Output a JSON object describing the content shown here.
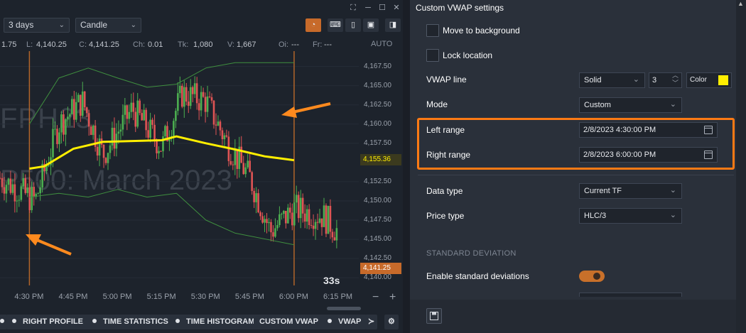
{
  "toolbar": {
    "period_label": "3 days",
    "chart_type_label": "Candle"
  },
  "ohlc": {
    "h_value": "1.75",
    "l_label": "L:",
    "l_value": "4,140.25",
    "c_label": "C:",
    "c_value": "4,141.25",
    "ch_label": "Ch:",
    "ch_value": "0.01",
    "tk_label": "Tk:",
    "tk_value": "1,080",
    "v_label": "V:",
    "v_value": "1,667",
    "oi_label": "Oi:",
    "oi_value": "---",
    "fr_label": "Fr:",
    "fr_value": "---"
  },
  "chart": {
    "auto_label": "AUTO",
    "watermark_symbol": "FPH23",
    "watermark_desc": "P500: March 2023",
    "timer": "33s",
    "vwap_price_tag": "4,155.36",
    "last_price_tag": "4,141.25",
    "price_ticks": [
      "4,167.50",
      "4,165.00",
      "4,162.50",
      "4,160.00",
      "4,157.50",
      "4,152.50",
      "4,150.00",
      "4,147.50",
      "4,145.00",
      "4,142.50",
      "4,140.00"
    ],
    "time_ticks": [
      "4:30 PM",
      "4:45 PM",
      "5:00 PM",
      "5:15 PM",
      "5:30 PM",
      "5:45 PM",
      "6:00 PM",
      "6:15 PM"
    ],
    "zoom_minus": "−",
    "zoom_plus": "+"
  },
  "chart_data": {
    "type": "candlestick",
    "title": "",
    "xlabel": "",
    "ylabel": "",
    "ylim": [
      4139.0,
      4169.5
    ],
    "x_range": [
      "4:20 PM",
      "6:22 PM"
    ],
    "vwap_line": {
      "color": "#ffee00",
      "x": [
        "4:30 PM",
        "4:35 PM",
        "4:45 PM",
        "4:55 PM",
        "5:05 PM",
        "5:15 PM",
        "5:20 PM",
        "5:30 PM",
        "5:40 PM",
        "5:50 PM",
        "6:00 PM"
      ],
      "y": [
        4154.2,
        4154.5,
        4156.8,
        4157.7,
        4157.8,
        4157.9,
        4158.4,
        4157.5,
        4156.7,
        4155.8,
        4155.3
      ]
    },
    "upper_band": {
      "x": [
        "4:30 PM",
        "4:40 PM",
        "4:50 PM",
        "5:00 PM",
        "5:10 PM",
        "5:20 PM",
        "5:30 PM",
        "5:40 PM",
        "6:00 PM"
      ],
      "y": [
        4160.0,
        4166.0,
        4167.3,
        4166.0,
        4164.8,
        4165.2,
        4167.3,
        4168.0,
        4168.0
      ]
    },
    "lower_band": {
      "x": [
        "4:30 PM",
        "4:40 PM",
        "4:50 PM",
        "5:00 PM",
        "5:10 PM",
        "5:20 PM",
        "5:30 PM",
        "5:40 PM",
        "6:00 PM"
      ],
      "y": [
        4150.5,
        4151.0,
        4150.5,
        4151.5,
        4150.5,
        4151.0,
        4147.5,
        4145.8,
        4144.3
      ]
    },
    "markers": [
      "4:30 PM",
      "6:00 PM"
    ],
    "last_price": 4141.25
  },
  "bottom_tabs": [
    {
      "label": "RIGHT PROFILE"
    },
    {
      "label": "TIME STATISTICS"
    },
    {
      "label": "TIME HISTOGRAM"
    },
    {
      "label": "CUSTOM VWAP"
    },
    {
      "label": "VWAP"
    }
  ],
  "panel": {
    "title": "Custom VWAP settings",
    "move_to_background": "Move to background",
    "lock_location": "Lock location",
    "vwap_line_label": "VWAP line",
    "line_style": "Solid",
    "line_width": "3",
    "color_label": "Color",
    "color_value": "#ffee00",
    "mode_label": "Mode",
    "mode_value": "Custom",
    "left_range_label": "Left range",
    "left_range_value": "2/8/2023 4:30:00 PM",
    "right_range_label": "Right range",
    "right_range_value": "2/8/2023 6:00:00 PM",
    "data_type_label": "Data type",
    "data_type_value": "Current TF",
    "price_type_label": "Price type",
    "price_type_value": "HLC/3",
    "section_std": "STANDARD DEVIATION",
    "enable_std_label": "Enable standard deviations",
    "enable_std_on": true
  },
  "colors": {
    "accent": "#ff7a14",
    "up_candle": "#4caf50",
    "down_candle": "#e05454",
    "vwap": "#ffee00",
    "band": "#3f8f3f"
  }
}
